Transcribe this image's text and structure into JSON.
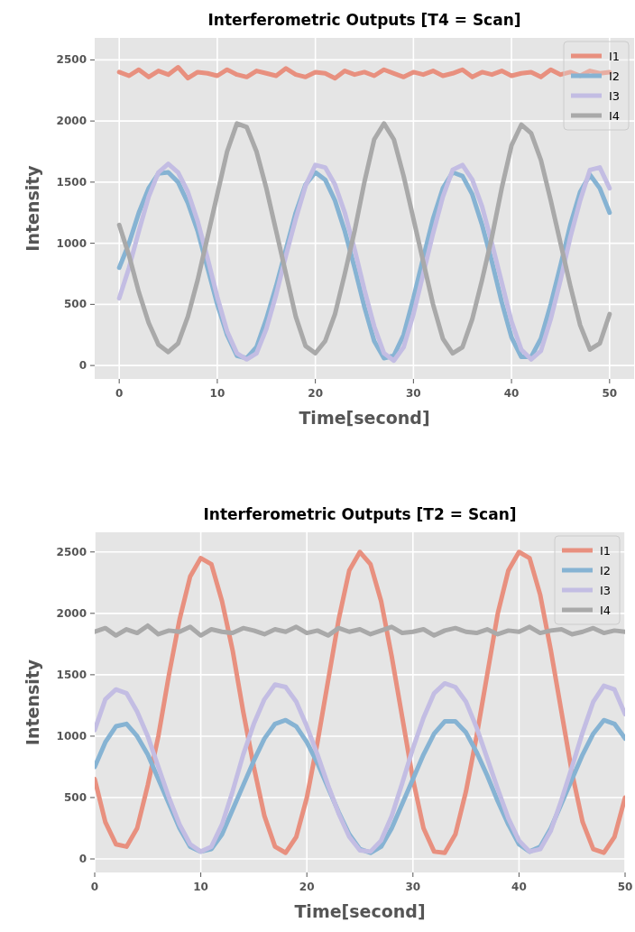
{
  "chart_data": [
    {
      "type": "line",
      "title": "Interferometric Outputs [T4 = Scan]",
      "xlabel": "Time[second]",
      "ylabel": "Intensity",
      "x": [
        0,
        1,
        2,
        3,
        4,
        5,
        6,
        7,
        8,
        9,
        10,
        11,
        12,
        13,
        14,
        15,
        16,
        17,
        18,
        19,
        20,
        21,
        22,
        23,
        24,
        25,
        26,
        27,
        28,
        29,
        30,
        31,
        32,
        33,
        34,
        35,
        36,
        37,
        38,
        39,
        40,
        41,
        42,
        43,
        44,
        45,
        46,
        47,
        48,
        49,
        50
      ],
      "xlim": [
        -2.5,
        52.5
      ],
      "xticks": [
        0,
        10,
        20,
        30,
        40,
        50
      ],
      "ylim": [
        -110,
        2680
      ],
      "yticks": [
        0,
        500,
        1000,
        1500,
        2000,
        2500
      ],
      "grid": true,
      "legend": "top right",
      "line_style": "solid",
      "series": [
        {
          "name": "I1",
          "color": "#e8907f",
          "values": [
            2400,
            2370,
            2420,
            2360,
            2410,
            2380,
            2440,
            2350,
            2400,
            2390,
            2370,
            2420,
            2380,
            2360,
            2410,
            2390,
            2370,
            2430,
            2380,
            2360,
            2400,
            2390,
            2350,
            2410,
            2380,
            2400,
            2370,
            2420,
            2390,
            2360,
            2400,
            2380,
            2410,
            2370,
            2390,
            2420,
            2360,
            2400,
            2380,
            2410,
            2370,
            2390,
            2400,
            2360,
            2420,
            2380,
            2400,
            2370,
            2410,
            2390,
            2400
          ]
        },
        {
          "name": "I2",
          "color": "#86b3d3",
          "values": [
            800,
            1000,
            1250,
            1450,
            1570,
            1580,
            1500,
            1330,
            1100,
            800,
            500,
            250,
            80,
            60,
            150,
            380,
            650,
            950,
            1250,
            1480,
            1580,
            1520,
            1350,
            1100,
            800,
            480,
            200,
            60,
            80,
            250,
            550,
            880,
            1200,
            1450,
            1580,
            1550,
            1400,
            1150,
            850,
            520,
            230,
            70,
            70,
            220,
            500,
            820,
            1150,
            1420,
            1560,
            1450,
            1250
          ]
        },
        {
          "name": "I3",
          "color": "#c3bde3",
          "values": [
            550,
            800,
            1100,
            1380,
            1580,
            1650,
            1580,
            1420,
            1180,
            880,
            560,
            280,
            100,
            50,
            100,
            300,
            580,
            900,
            1200,
            1470,
            1640,
            1620,
            1480,
            1250,
            950,
            620,
            320,
            100,
            40,
            150,
            420,
            750,
            1080,
            1380,
            1600,
            1640,
            1520,
            1300,
            1000,
            680,
            360,
            130,
            50,
            120,
            380,
            700,
            1050,
            1350,
            1600,
            1620,
            1450
          ]
        },
        {
          "name": "I4",
          "color": "#a9a9a9",
          "values": [
            1150,
            900,
            600,
            350,
            170,
            110,
            180,
            400,
            700,
            1050,
            1400,
            1750,
            1980,
            1950,
            1750,
            1450,
            1100,
            750,
            400,
            160,
            100,
            200,
            420,
            750,
            1100,
            1500,
            1850,
            1980,
            1850,
            1550,
            1200,
            850,
            500,
            220,
            100,
            150,
            380,
            700,
            1050,
            1450,
            1800,
            1970,
            1900,
            1680,
            1350,
            1000,
            650,
            330,
            130,
            180,
            420
          ]
        }
      ]
    },
    {
      "type": "line",
      "title": "Interferometric Outputs [T2 = Scan]",
      "xlabel": "Time[second]",
      "ylabel": "Intensity",
      "x": [
        0,
        1,
        2,
        3,
        4,
        5,
        6,
        7,
        8,
        9,
        10,
        11,
        12,
        13,
        14,
        15,
        16,
        17,
        18,
        19,
        20,
        21,
        22,
        23,
        24,
        25,
        26,
        27,
        28,
        29,
        30,
        31,
        32,
        33,
        34,
        35,
        36,
        37,
        38,
        39,
        40,
        41,
        42,
        43,
        44,
        45,
        46,
        47,
        48,
        49,
        50
      ],
      "xlim": [
        0,
        50
      ],
      "xticks": [
        0,
        10,
        20,
        30,
        40,
        50
      ],
      "ylim": [
        -110,
        2660
      ],
      "yticks": [
        0,
        500,
        1000,
        1500,
        2000,
        2500
      ],
      "grid": true,
      "legend": "top right",
      "line_style": "solid",
      "series": [
        {
          "name": "I1",
          "color": "#e8907f",
          "values": [
            650,
            300,
            120,
            100,
            250,
            600,
            1000,
            1500,
            1950,
            2300,
            2450,
            2400,
            2100,
            1700,
            1200,
            750,
            350,
            100,
            50,
            180,
            500,
            950,
            1450,
            1950,
            2350,
            2500,
            2400,
            2100,
            1650,
            1150,
            650,
            250,
            60,
            50,
            200,
            550,
            1000,
            1500,
            2000,
            2350,
            2500,
            2450,
            2150,
            1700,
            1200,
            700,
            300,
            80,
            50,
            180,
            500
          ]
        },
        {
          "name": "I2",
          "color": "#86b3d3",
          "values": [
            750,
            950,
            1080,
            1100,
            1000,
            850,
            650,
            450,
            250,
            100,
            60,
            80,
            200,
            400,
            600,
            800,
            980,
            1100,
            1130,
            1080,
            950,
            780,
            580,
            380,
            200,
            80,
            50,
            100,
            250,
            450,
            650,
            850,
            1020,
            1120,
            1120,
            1030,
            870,
            680,
            470,
            280,
            120,
            60,
            100,
            250,
            450,
            650,
            850,
            1020,
            1130,
            1100,
            980
          ]
        },
        {
          "name": "I3",
          "color": "#c3bde3",
          "values": [
            1050,
            1300,
            1380,
            1350,
            1200,
            1000,
            750,
            500,
            280,
            120,
            60,
            100,
            280,
            550,
            850,
            1100,
            1300,
            1420,
            1400,
            1280,
            1080,
            850,
            600,
            370,
            180,
            70,
            60,
            150,
            350,
            620,
            900,
            1150,
            1350,
            1430,
            1400,
            1280,
            1070,
            820,
            570,
            330,
            150,
            60,
            80,
            230,
            480,
            750,
            1030,
            1280,
            1410,
            1380,
            1180
          ]
        },
        {
          "name": "I4",
          "color": "#a9a9a9",
          "values": [
            1850,
            1880,
            1820,
            1870,
            1840,
            1900,
            1830,
            1860,
            1850,
            1890,
            1820,
            1870,
            1850,
            1840,
            1880,
            1860,
            1830,
            1870,
            1850,
            1890,
            1840,
            1860,
            1820,
            1880,
            1850,
            1870,
            1830,
            1860,
            1890,
            1840,
            1850,
            1870,
            1820,
            1860,
            1880,
            1850,
            1840,
            1870,
            1830,
            1860,
            1850,
            1890,
            1840,
            1860,
            1870,
            1830,
            1850,
            1880,
            1840,
            1860,
            1850
          ]
        }
      ]
    }
  ]
}
